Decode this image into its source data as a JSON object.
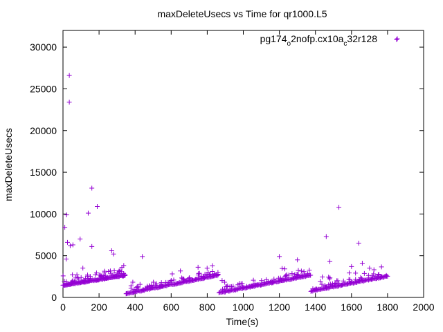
{
  "chart_data": {
    "type": "scatter",
    "title": "maxDeleteUsecs vs Time for qr1000.L5",
    "xlabel": "Time(s)",
    "ylabel": "maxDeleteUsecs",
    "xlim": [
      0,
      2000
    ],
    "ylim": [
      0,
      32000
    ],
    "xticks": [
      0,
      200,
      400,
      600,
      800,
      1000,
      1200,
      1400,
      1600,
      1800,
      2000
    ],
    "yticks": [
      0,
      5000,
      10000,
      15000,
      20000,
      25000,
      30000
    ],
    "grid": false,
    "legend_position": "top-right",
    "marker": "+",
    "colors": {
      "series": "#9400d3",
      "axis": "#000000",
      "background": "#ffffff"
    },
    "series": [
      {
        "name": "pg174_o2nofp.cx10a_c32r128",
        "name_parts": {
          "p1": "pg174",
          "s1": "o",
          "p2": "2nofp.cx10a",
          "s2": "c",
          "p3": "32r128"
        },
        "outliers": [
          [
            10,
            8400
          ],
          [
            20,
            9900
          ],
          [
            35,
            26600
          ],
          [
            35,
            23400
          ],
          [
            18,
            4600
          ],
          [
            25,
            6600
          ],
          [
            40,
            6200
          ],
          [
            55,
            6300
          ],
          [
            95,
            7000
          ],
          [
            140,
            10100
          ],
          [
            160,
            13100
          ],
          [
            160,
            6100
          ],
          [
            190,
            10900
          ],
          [
            270,
            5600
          ],
          [
            280,
            5200
          ],
          [
            440,
            4900
          ],
          [
            1460,
            7300
          ],
          [
            1530,
            10800
          ],
          [
            1640,
            6500
          ],
          [
            1850,
            30900
          ],
          [
            1200,
            4900
          ],
          [
            1300,
            4500
          ],
          [
            1480,
            4300
          ],
          [
            1660,
            4100
          ],
          [
            1600,
            3700
          ],
          [
            1700,
            3500
          ]
        ],
        "segments": [
          {
            "x_start": 0,
            "x_end": 345,
            "y_start": 1400,
            "y_end": 2600,
            "spread": 900,
            "step": 4
          },
          {
            "x_start": 350,
            "x_end": 860,
            "y_start": 400,
            "y_end": 2600,
            "spread": 700,
            "step": 5
          },
          {
            "x_start": 865,
            "x_end": 1370,
            "y_start": 500,
            "y_end": 2600,
            "spread": 700,
            "step": 5
          },
          {
            "x_start": 1375,
            "x_end": 1800,
            "y_start": 700,
            "y_end": 2500,
            "spread": 700,
            "step": 5
          }
        ]
      }
    ]
  }
}
